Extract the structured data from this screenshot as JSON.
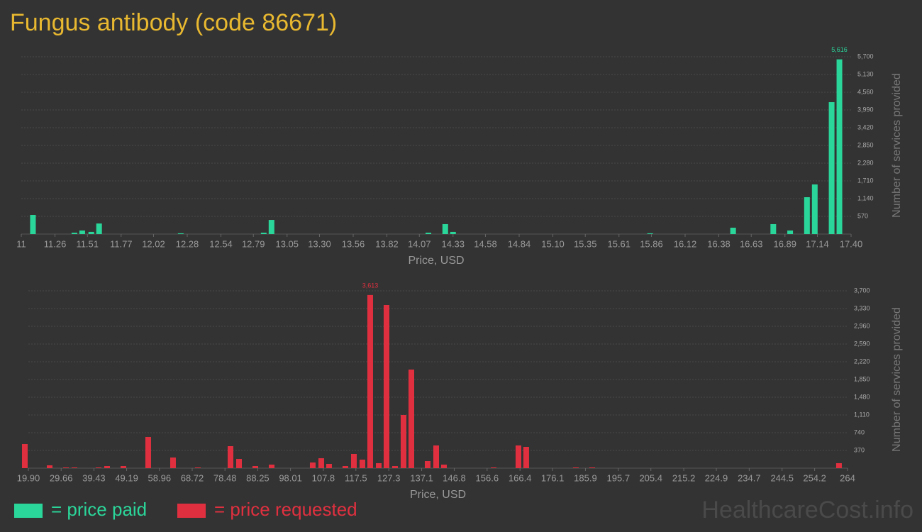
{
  "title": "Fungus antibody (code 86671)",
  "watermark": "HealthcareCost.info",
  "chart_data": [
    {
      "type": "bar",
      "x_label": "Price, USD",
      "y_label": "Number of services provided",
      "grid": true,
      "xlim": [
        11,
        17.4
      ],
      "ylim": [
        0,
        5700
      ],
      "xticks": [
        11,
        11.26,
        11.51,
        11.77,
        12.02,
        12.28,
        12.54,
        12.79,
        13.05,
        {
          "value": 13.3,
          "label": "13.30"
        },
        13.56,
        13.82,
        14.07,
        14.33,
        14.58,
        14.84,
        {
          "value": 15.1,
          "label": "15.10"
        },
        15.35,
        15.61,
        15.86,
        16.12,
        16.38,
        16.63,
        16.89,
        17.14,
        {
          "value": 17.4,
          "label": "17.40"
        }
      ],
      "yticks": [
        570,
        {
          "value": 1140,
          "label": "1,140"
        },
        {
          "value": 1710,
          "label": "1,710"
        },
        {
          "value": 2280,
          "label": "2,280"
        },
        {
          "value": 2850,
          "label": "2,850"
        },
        {
          "value": 3420,
          "label": "3,420"
        },
        {
          "value": 3990,
          "label": "3,990"
        },
        {
          "value": 4560,
          "label": "4,560"
        },
        {
          "value": 5130,
          "label": "5,130"
        },
        {
          "value": 5700,
          "label": "5,700"
        }
      ],
      "x": [
        11.09,
        11.41,
        11.47,
        11.54,
        11.6,
        12.23,
        12.87,
        12.93,
        14.14,
        14.27,
        14.33,
        15.85,
        16.49,
        16.8,
        16.93,
        17.06,
        17.12,
        17.25,
        17.31
      ],
      "series": [
        {
          "name": "= price paid",
          "color": "#2bd69a",
          "values": [
            615,
            45,
            115,
            70,
            340,
            25,
            45,
            455,
            45,
            320,
            70,
            25,
            205,
            320,
            115,
            1185,
            1595,
            4240,
            5616
          ],
          "value_labels": [
            null,
            null,
            null,
            null,
            null,
            null,
            null,
            null,
            null,
            null,
            null,
            null,
            null,
            null,
            null,
            null,
            null,
            null,
            "5,616"
          ]
        }
      ]
    },
    {
      "type": "bar",
      "x_label": "Price, USD",
      "y_label": "Number of services provided",
      "grid": true,
      "xlim": [
        19.9,
        264
      ],
      "ylim": [
        0,
        3700
      ],
      "xticks": [
        {
          "value": 19.9,
          "label": "19.90"
        },
        29.66,
        39.43,
        49.19,
        58.96,
        68.72,
        78.48,
        88.25,
        98.01,
        107.8,
        117.5,
        127.3,
        137.1,
        146.8,
        156.6,
        166.4,
        176.1,
        185.9,
        195.7,
        205.4,
        215.2,
        224.9,
        234.7,
        244.5,
        254.2,
        264
      ],
      "yticks": [
        370,
        740,
        {
          "value": 1110,
          "label": "1,110"
        },
        {
          "value": 1480,
          "label": "1,480"
        },
        {
          "value": 1850,
          "label": "1,850"
        },
        {
          "value": 2220,
          "label": "2,220"
        },
        {
          "value": 2590,
          "label": "2,590"
        },
        {
          "value": 2960,
          "label": "2,960"
        },
        {
          "value": 3330,
          "label": "3,330"
        },
        {
          "value": 3700,
          "label": "3,700"
        }
      ],
      "x": [
        18.84,
        26.24,
        31.1,
        33.64,
        40.82,
        43.36,
        48.22,
        55.61,
        63.01,
        70.41,
        80.13,
        82.67,
        87.53,
        92.39,
        104.64,
        107.18,
        109.5,
        114.36,
        116.9,
        119.44,
        121.76,
        124.3,
        126.62,
        129.16,
        131.69,
        134.02,
        138.88,
        141.42,
        143.74,
        158.53,
        165.93,
        168.25,
        183.04,
        187.9,
        261.45
      ],
      "series": [
        {
          "name": "= price requested",
          "color": "#e0303f",
          "values": [
            503,
            59,
            15,
            15,
            15,
            44,
            44,
            651,
            222,
            15,
            459,
            192,
            44,
            74,
            118,
            207,
            89,
            44,
            296,
            178,
            3613,
            104,
            3404,
            44,
            1110,
            2057,
            148,
            474,
            74,
            15,
            474,
            444,
            15,
            15,
            104
          ],
          "value_labels": [
            null,
            null,
            null,
            null,
            null,
            null,
            null,
            null,
            null,
            null,
            null,
            null,
            null,
            null,
            null,
            null,
            null,
            null,
            null,
            null,
            "3,613",
            null,
            null,
            null,
            null,
            null,
            null,
            null,
            null,
            null,
            null,
            null,
            null,
            null,
            null
          ]
        }
      ]
    }
  ]
}
